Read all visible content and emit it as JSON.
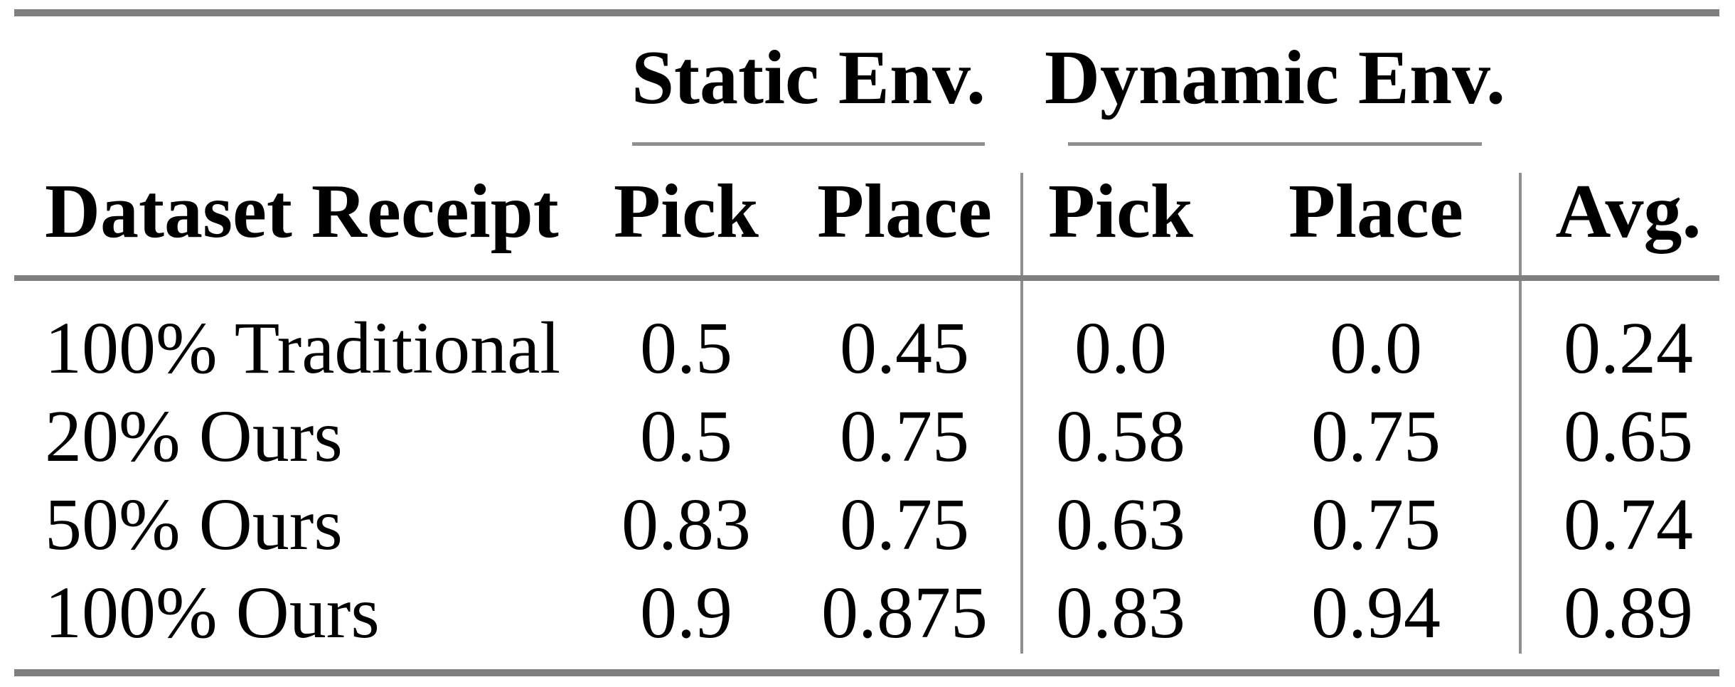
{
  "table": {
    "group_headers": [
      "Static Env.",
      "Dynamic Env."
    ],
    "columns": [
      "Dataset Receipt",
      "Pick",
      "Place",
      "Pick",
      "Place",
      "Avg."
    ],
    "rows": [
      {
        "label": "100% Traditional",
        "values": [
          "0.5",
          "0.45",
          "0.0",
          "0.0",
          "0.24"
        ]
      },
      {
        "label": "20% Ours",
        "values": [
          "0.5",
          "0.75",
          "0.58",
          "0.75",
          "0.65"
        ]
      },
      {
        "label": "50% Ours",
        "values": [
          "0.83",
          "0.75",
          "0.63",
          "0.75",
          "0.74"
        ]
      },
      {
        "label": "100% Ours",
        "values": [
          "0.9",
          "0.875",
          "0.83",
          "0.94",
          "0.89"
        ]
      }
    ],
    "colors": {
      "heavy_rule": "#7f7f7f",
      "light_rule": "#8f8f8f",
      "text": "#000000",
      "background": "#ffffff"
    }
  }
}
